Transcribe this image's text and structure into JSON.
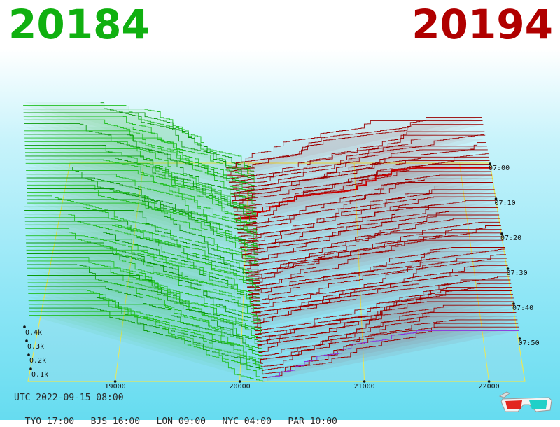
{
  "header": {
    "bid_price": "20184",
    "ask_price": "20194",
    "bid_color": "#10b010",
    "ask_color": "#b00000"
  },
  "footer": {
    "utc_label": "UTC 2022-09-15 08:00",
    "timezones": [
      {
        "city": "TYO",
        "time": "17:00"
      },
      {
        "city": "BJS",
        "time": "16:00"
      },
      {
        "city": "LON",
        "time": "09:00"
      },
      {
        "city": "NYC",
        "time": "04:00"
      },
      {
        "city": "PAR",
        "time": "10:00"
      }
    ]
  },
  "icons": {
    "glasses": "anaglyph-3d-glasses-icon"
  },
  "chart_data": {
    "type": "area",
    "title": "",
    "x_axis": {
      "label": "",
      "range": [
        18300,
        22300
      ],
      "ticks": [
        "19000",
        "20000",
        "21000",
        "22000"
      ],
      "tick_values": [
        19000,
        20000,
        21000,
        22000
      ]
    },
    "depth_axis": {
      "label": "",
      "range": [
        0,
        450
      ],
      "ticks": [
        "0.1k",
        "0.2k",
        "0.3k",
        "0.4k"
      ],
      "tick_values": [
        100,
        200,
        300,
        400
      ]
    },
    "time_axis": {
      "label": "",
      "ticks": [
        "07:00",
        "07:10",
        "07:20",
        "07:30",
        "07:40",
        "07:50"
      ],
      "tick_values": [
        0,
        10,
        20,
        30,
        40,
        50
      ],
      "range_minutes": [
        0,
        60
      ]
    },
    "series": [
      {
        "name": "",
        "side": "bid",
        "color": "#10b010"
      },
      {
        "name": "",
        "side": "ask",
        "color": "#a00000"
      }
    ],
    "snapshot_count": 60,
    "latest_mid_price": 20189,
    "grid": true
  }
}
